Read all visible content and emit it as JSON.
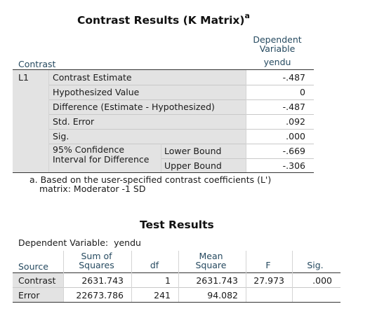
{
  "contrast_table": {
    "title": "Contrast Results (K Matrix)",
    "title_sup": "a",
    "dep_var_header_line1": "Dependent",
    "dep_var_header_line2": "Variable",
    "dep_var_name": "yendu",
    "contrast_header": "Contrast",
    "contrast_label": "L1",
    "rows": [
      {
        "label": "Contrast Estimate",
        "value": "-.487"
      },
      {
        "label": "Hypothesized Value",
        "value": "0"
      },
      {
        "label": "Difference (Estimate - Hypothesized)",
        "value": "-.487"
      },
      {
        "label": "Std. Error",
        "value": ".092"
      },
      {
        "label": "Sig.",
        "value": ".000"
      }
    ],
    "ci_label_line1": "95% Confidence",
    "ci_label_line2": "Interval for Difference",
    "ci_rows": [
      {
        "label": "Lower Bound",
        "value": "-.669"
      },
      {
        "label": "Upper Bound",
        "value": "-.306"
      }
    ],
    "footnote_line1": "a. Based on the user-specified contrast coefficients (L')",
    "footnote_line2": "matrix: Moderator -1 SD"
  },
  "test_table": {
    "title": "Test Results",
    "dep_var_label": "Dependent Variable:",
    "dep_var_name": "yendu",
    "headers": {
      "source": "Source",
      "ss_line1": "Sum of",
      "ss_line2": "Squares",
      "df": "df",
      "ms_line1": "Mean",
      "ms_line2": "Square",
      "f": "F",
      "sig": "Sig."
    },
    "rows": [
      {
        "source": "Contrast",
        "ss": "2631.743",
        "df": "1",
        "ms": "2631.743",
        "f": "27.973",
        "sig": ".000"
      },
      {
        "source": "Error",
        "ss": "22673.786",
        "df": "241",
        "ms": "94.082",
        "f": "",
        "sig": ""
      }
    ]
  }
}
